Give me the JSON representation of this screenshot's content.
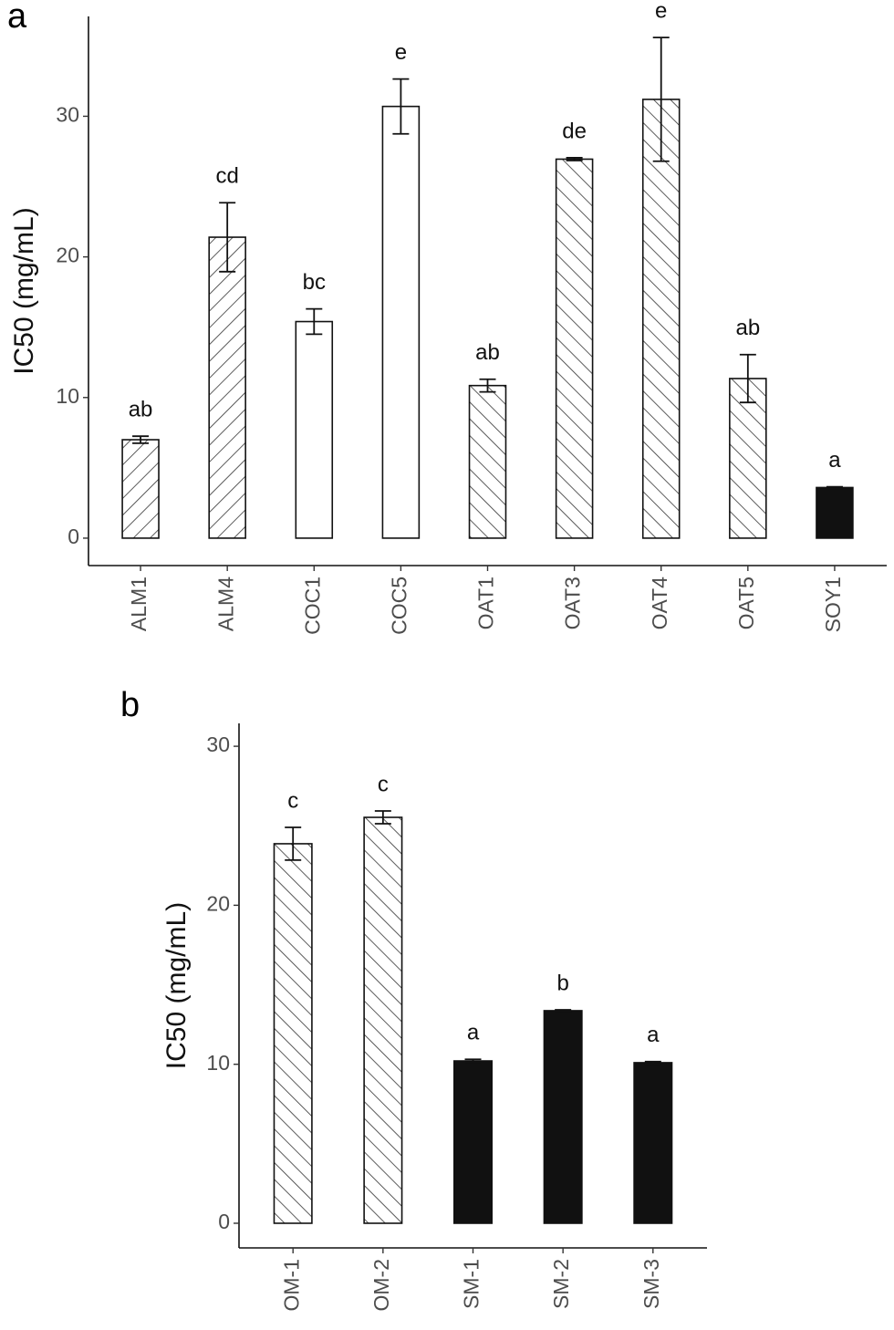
{
  "chart_data": [
    {
      "type": "bar",
      "panel": "a",
      "y_label": "IC50 (mg/mL)",
      "categories": [
        "ALM1",
        "ALM4",
        "COC1",
        "COC5",
        "OAT1",
        "OAT3",
        "OAT4",
        "OAT5",
        "SOY1"
      ],
      "values": [
        7.0,
        21.4,
        15.4,
        30.7,
        10.85,
        26.95,
        31.2,
        11.35,
        3.6
      ],
      "errors": [
        0.25,
        2.45,
        0.9,
        1.95,
        0.45,
        0.1,
        4.4,
        1.7,
        0.05
      ],
      "annotations": [
        "ab",
        "cd",
        "bc",
        "e",
        "ab",
        "de",
        "e",
        "ab",
        "a"
      ],
      "fill_styles": [
        "hatch-right",
        "hatch-right",
        "open",
        "open",
        "hatch-left",
        "hatch-left",
        "hatch-left",
        "hatch-left",
        "solid"
      ],
      "ylim": [
        -1.95,
        37.1
      ],
      "yticks": [
        0,
        10,
        20,
        30
      ]
    },
    {
      "type": "bar",
      "panel": "b",
      "y_label": "IC50 (mg/mL)",
      "categories": [
        "OM-1",
        "OM-2",
        "SM-1",
        "SM-2",
        "SM-3"
      ],
      "values": [
        23.87,
        25.53,
        10.21,
        13.37,
        10.1
      ],
      "errors": [
        1.03,
        0.4,
        0.1,
        0.05,
        0.07
      ],
      "annotations": [
        "c",
        "c",
        "a",
        "b",
        "a"
      ],
      "fill_styles": [
        "hatch-left",
        "hatch-left",
        "solid",
        "solid",
        "solid"
      ],
      "ylim": [
        -1.55,
        31.44
      ],
      "yticks": [
        0,
        10,
        20,
        30
      ]
    }
  ]
}
